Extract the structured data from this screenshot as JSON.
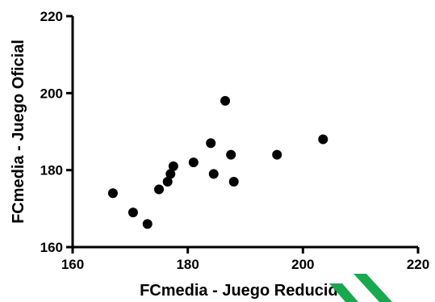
{
  "chart_data": {
    "type": "scatter",
    "title": "",
    "xlabel": "FCmedia - Juego Reducido",
    "ylabel": "FCmedia - Juego Oficial",
    "xlim": [
      160,
      220
    ],
    "ylim": [
      160,
      220
    ],
    "xticks": [
      160,
      180,
      200,
      220
    ],
    "yticks": [
      160,
      180,
      200,
      220
    ],
    "grid": false,
    "series": [
      {
        "color": "#000000",
        "points": [
          {
            "x": 167,
            "y": 174
          },
          {
            "x": 170.5,
            "y": 169
          },
          {
            "x": 173,
            "y": 166
          },
          {
            "x": 175,
            "y": 175
          },
          {
            "x": 176.5,
            "y": 177
          },
          {
            "x": 177,
            "y": 179
          },
          {
            "x": 177.5,
            "y": 181
          },
          {
            "x": 181,
            "y": 182
          },
          {
            "x": 184,
            "y": 187
          },
          {
            "x": 184.5,
            "y": 179
          },
          {
            "x": 186.5,
            "y": 198
          },
          {
            "x": 187.5,
            "y": 184
          },
          {
            "x": 188,
            "y": 177
          },
          {
            "x": 195.5,
            "y": 184
          },
          {
            "x": 203.5,
            "y": 188
          }
        ]
      }
    ]
  },
  "decoration": {
    "corner_mark_color": "#1aa84f"
  }
}
